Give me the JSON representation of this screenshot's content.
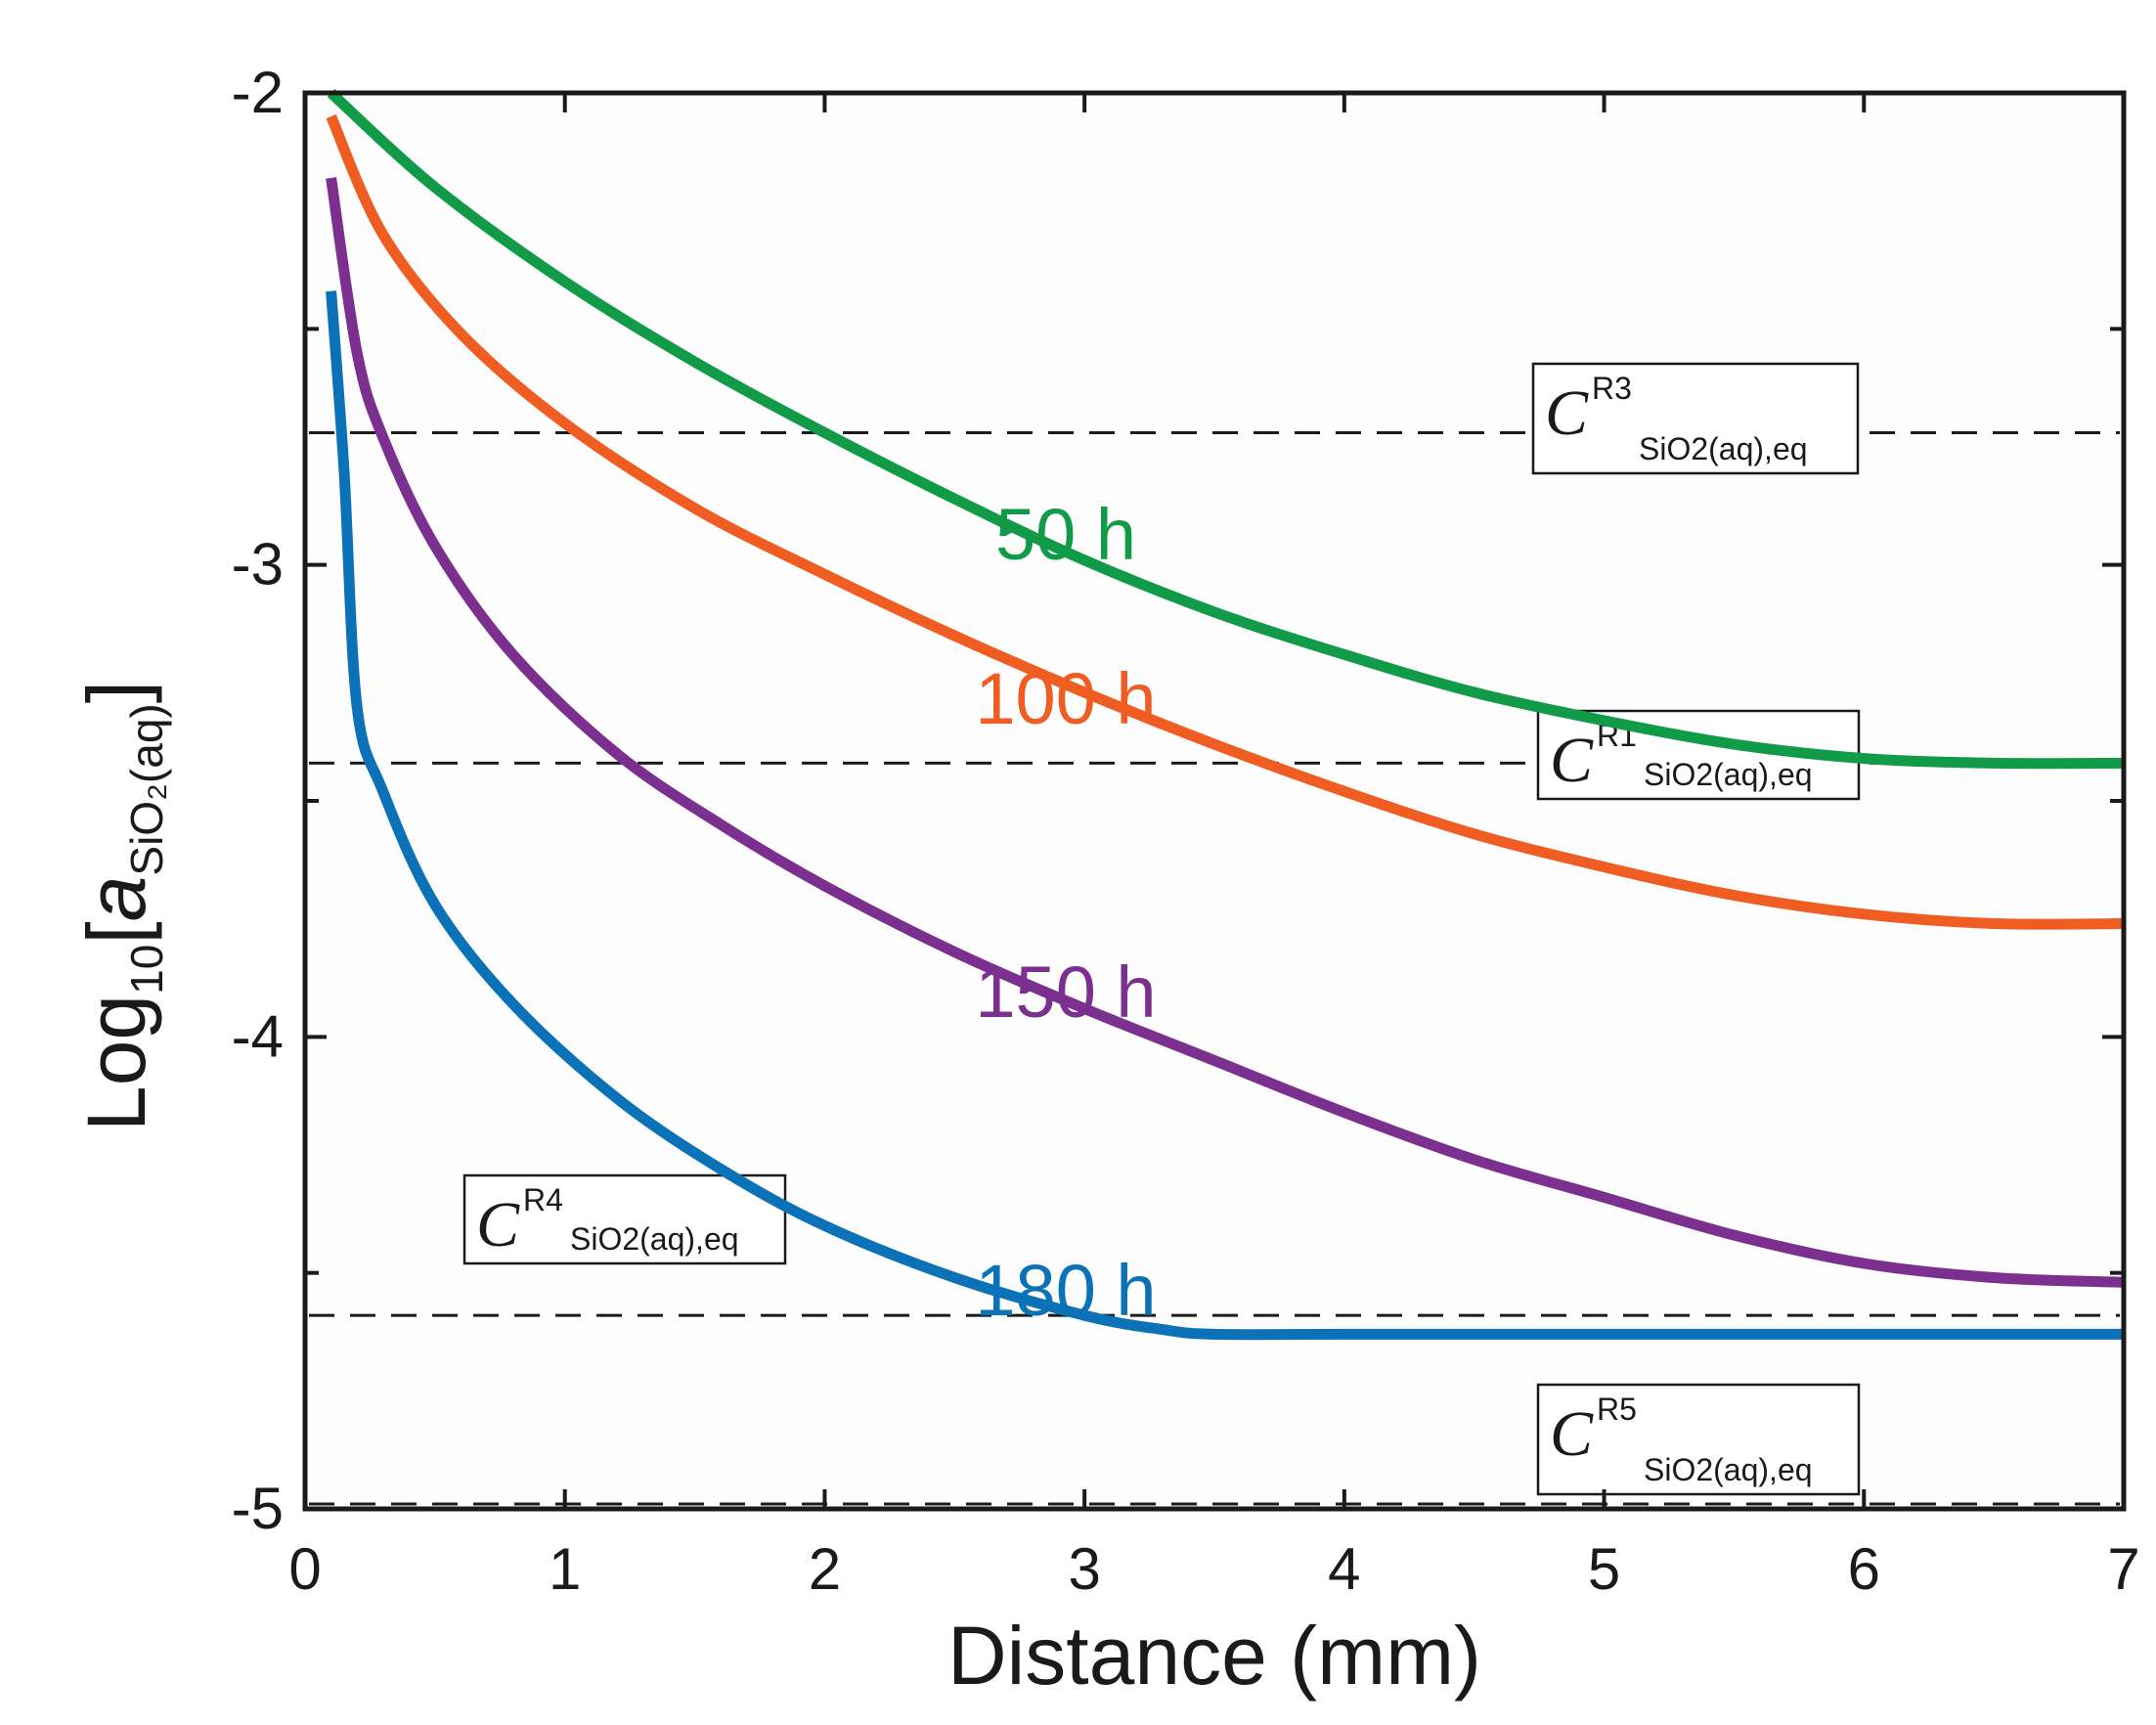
{
  "chart_data": {
    "type": "line",
    "xlabel": "Distance (mm)",
    "ylabel": {
      "prefix": "Log",
      "prefix_sub": "10",
      "open": "[",
      "a": "a",
      "a_sub": "SiO₂(aq)",
      "close": "]"
    },
    "xlim": [
      0,
      7
    ],
    "ylim": [
      -5,
      -2
    ],
    "xticks": [
      "0",
      "1",
      "2",
      "3",
      "4",
      "5",
      "6",
      "7"
    ],
    "yticks": [
      "-2",
      "-3",
      "-4",
      "-5"
    ],
    "grid": false,
    "series": [
      {
        "name": "50 h",
        "color": "#119a48",
        "x": [
          0.1,
          0.5,
          1.0,
          1.5,
          2.0,
          2.5,
          3.0,
          3.5,
          4.0,
          4.5,
          5.0,
          5.5,
          6.0,
          6.5,
          7.0
        ],
        "y": [
          -2.0,
          -2.2,
          -2.4,
          -2.57,
          -2.72,
          -2.86,
          -2.99,
          -3.1,
          -3.19,
          -3.27,
          -3.33,
          -3.38,
          -3.41,
          -3.42,
          -3.42
        ]
      },
      {
        "name": "100 h",
        "color": "#ef5d22",
        "x": [
          0.1,
          0.3,
          0.6,
          1.0,
          1.5,
          2.0,
          2.5,
          3.0,
          3.5,
          4.0,
          4.5,
          5.0,
          5.5,
          6.0,
          6.5,
          7.0
        ],
        "y": [
          -2.05,
          -2.3,
          -2.51,
          -2.7,
          -2.88,
          -3.02,
          -3.15,
          -3.27,
          -3.38,
          -3.48,
          -3.57,
          -3.64,
          -3.7,
          -3.74,
          -3.76,
          -3.76
        ]
      },
      {
        "name": "150 h",
        "color": "#7b2f8f",
        "x": [
          0.1,
          0.2,
          0.3,
          0.5,
          0.8,
          1.2,
          1.6,
          2.0,
          2.5,
          3.0,
          3.5,
          4.0,
          4.5,
          5.0,
          5.5,
          6.0,
          6.5,
          7.0
        ],
        "y": [
          -2.18,
          -2.55,
          -2.73,
          -2.96,
          -3.19,
          -3.4,
          -3.55,
          -3.68,
          -3.82,
          -3.94,
          -4.05,
          -4.16,
          -4.26,
          -4.34,
          -4.42,
          -4.48,
          -4.51,
          -4.52
        ]
      },
      {
        "name": "180 h",
        "color": "#0b72b8",
        "x": [
          0.1,
          0.15,
          0.2,
          0.3,
          0.5,
          0.8,
          1.2,
          1.6,
          2.0,
          2.5,
          3.0,
          3.3,
          3.5,
          4.0,
          5.0,
          6.0,
          7.0
        ],
        "y": [
          -2.42,
          -2.8,
          -3.3,
          -3.48,
          -3.72,
          -3.93,
          -4.13,
          -4.28,
          -4.4,
          -4.51,
          -4.59,
          -4.62,
          -4.63,
          -4.63,
          -4.63,
          -4.63,
          -4.63
        ]
      }
    ],
    "reference_lines": [
      {
        "base": "C",
        "sup": "R3",
        "sub": "SiO2(aq),eq",
        "y": -2.72
      },
      {
        "base": "C",
        "sup": "R1",
        "sub": "SiO2(aq),eq",
        "y": -3.42
      },
      {
        "base": "C",
        "sup": "R4",
        "sub": "SiO2(aq),eq",
        "y": -4.59
      },
      {
        "base": "C",
        "sup": "R5",
        "sub": "SiO2(aq),eq",
        "y": -5.07
      }
    ],
    "annotations": [
      "50 h",
      "100 h",
      "150 h",
      "180 h"
    ]
  }
}
